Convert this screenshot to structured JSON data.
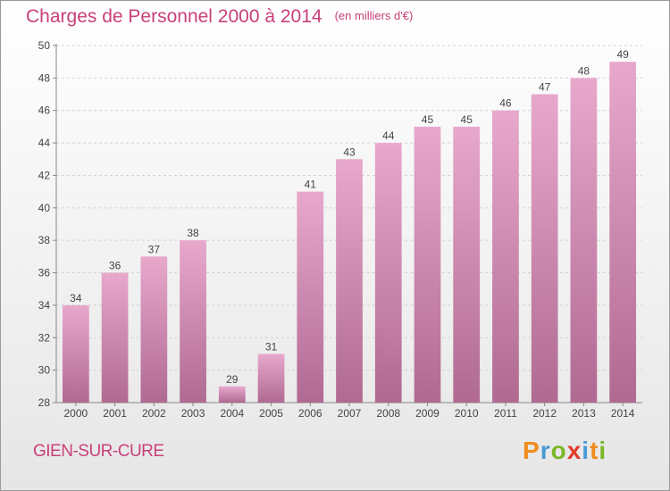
{
  "title": "Charges de Personnel 2000 à 2014",
  "subtitle": "(en milliers d'€)",
  "location": "GIEN-SUR-CURE",
  "brand": {
    "letters": [
      "P",
      "r",
      "o",
      "x",
      "i",
      "t",
      "i"
    ],
    "colors": [
      "#f08c1e",
      "#4a9ad6",
      "#7ab828",
      "#e23b2c",
      "#4a9ad6",
      "#f08c1e",
      "#7ab828"
    ]
  },
  "colors": {
    "title": "#c8407a",
    "bar_top": "#e8a8cc",
    "bar_bottom": "#b06a92"
  },
  "chart_data": {
    "type": "bar",
    "categories": [
      "2000",
      "2001",
      "2002",
      "2003",
      "2004",
      "2005",
      "2006",
      "2007",
      "2008",
      "2009",
      "2010",
      "2011",
      "2012",
      "2013",
      "2014"
    ],
    "values": [
      34,
      36,
      37,
      38,
      29,
      31,
      41,
      43,
      44,
      45,
      45,
      46,
      47,
      48,
      49
    ],
    "ylim": [
      28,
      50
    ],
    "yticks": [
      28,
      30,
      32,
      34,
      36,
      38,
      40,
      42,
      44,
      46,
      48,
      50
    ],
    "grid": true,
    "data_labels": true
  }
}
